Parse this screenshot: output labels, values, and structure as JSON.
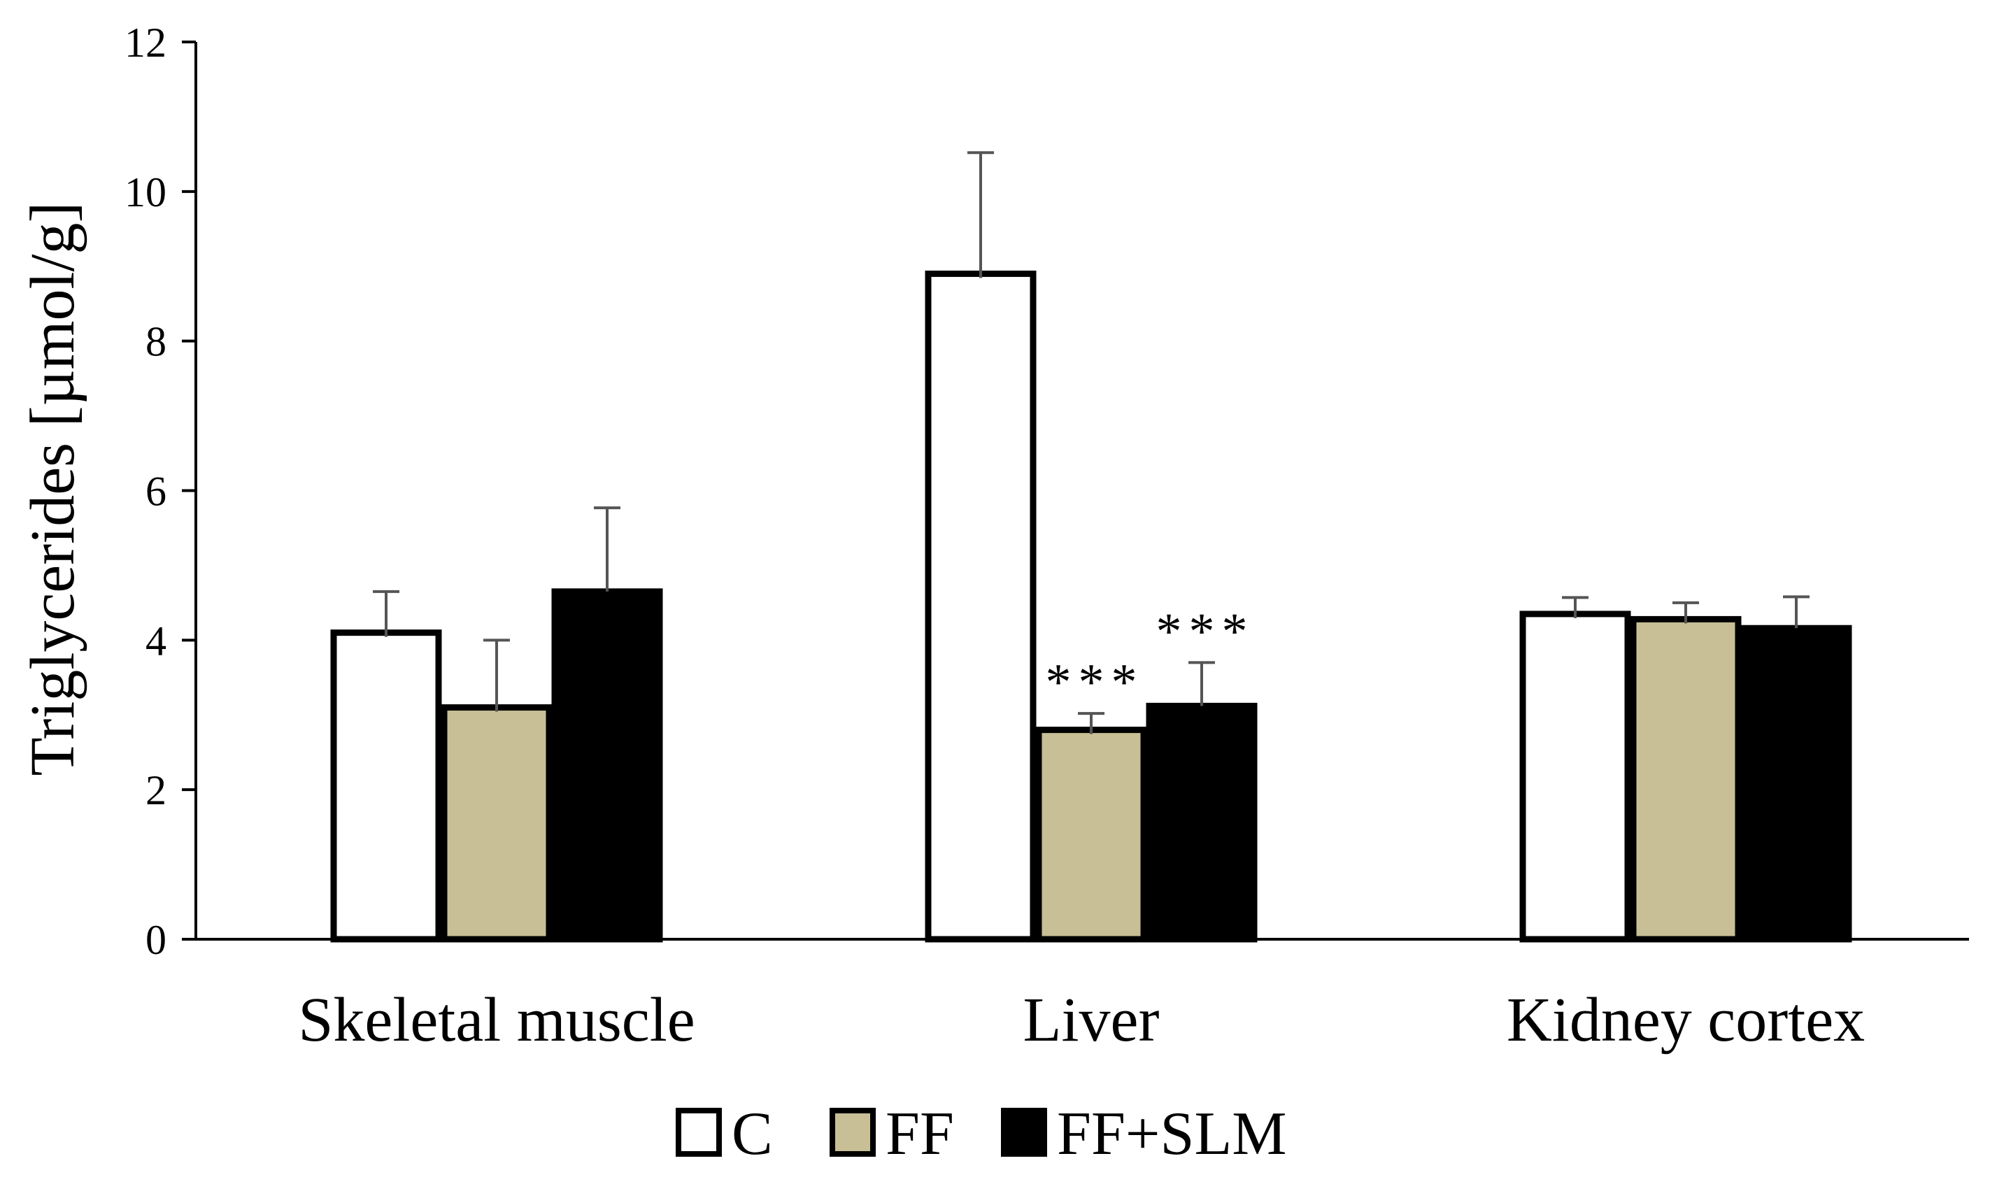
{
  "chart_data": {
    "type": "bar",
    "title": "",
    "xlabel": "",
    "ylabel": "Triglycerides [µmol/g]",
    "ylim": [
      0,
      12
    ],
    "yticks": [
      0,
      2,
      4,
      6,
      8,
      10,
      12
    ],
    "grid": false,
    "legend_position": "bottom",
    "categories": [
      "Skeletal muscle",
      "Liver",
      "Kidney cortex"
    ],
    "series": [
      {
        "name": "C",
        "color": "#ffffff",
        "values": [
          4.1,
          8.9,
          4.35
        ],
        "errors": [
          0.55,
          1.62,
          0.22
        ],
        "annotations": [
          "",
          "",
          ""
        ]
      },
      {
        "name": "FF",
        "color": "#c8bf96",
        "values": [
          3.1,
          2.8,
          4.28
        ],
        "errors": [
          0.9,
          0.22,
          0.22
        ],
        "annotations": [
          "",
          "***",
          ""
        ]
      },
      {
        "name": "FF+SLM",
        "color": "#000000",
        "values": [
          4.65,
          3.12,
          4.16
        ],
        "errors": [
          1.12,
          0.58,
          0.42
        ],
        "annotations": [
          "",
          "***",
          ""
        ]
      }
    ]
  }
}
